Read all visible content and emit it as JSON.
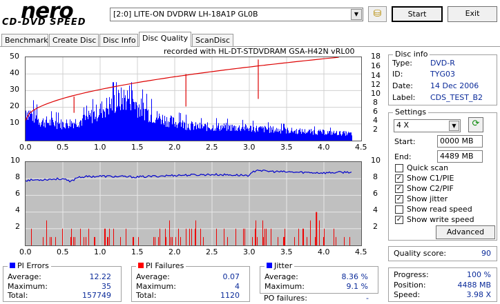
{
  "header": {
    "logo_text": "nero",
    "logo_sub": "CD-DVD SPEED",
    "drive": "[2:0]  LITE-ON DVDRW LH-18A1P GL0B",
    "start_label": "Start",
    "exit_label": "Exit"
  },
  "tabs": [
    {
      "label": "Benchmark"
    },
    {
      "label": "Create Disc"
    },
    {
      "label": "Disc Info"
    },
    {
      "label": "Disc Quality"
    },
    {
      "label": "ScanDisc"
    }
  ],
  "chart_top": {
    "recorded_with": "recorded with HL-DT-STDVDRAM GSA-H42N  vRL00",
    "left_ticks": [
      "50",
      "40",
      "30",
      "20",
      "10"
    ],
    "right_ticks": [
      "18",
      "16",
      "14",
      "12",
      "10",
      "8",
      "6",
      "4",
      "2"
    ],
    "x_ticks": [
      "0.0",
      "0.5",
      "1.0",
      "1.5",
      "2.0",
      "2.5",
      "3.0",
      "3.5",
      "4.0",
      "4.5"
    ]
  },
  "chart_bot": {
    "left_ticks": [
      "10",
      "8",
      "6",
      "4",
      "2"
    ],
    "right_ticks": [
      "10",
      "8",
      "6",
      "4",
      "2"
    ],
    "x_ticks": [
      "0.0",
      "0.5",
      "1.0",
      "1.5",
      "2.0",
      "2.5",
      "3.0",
      "3.5",
      "4.0",
      "4.5"
    ]
  },
  "chart_data": [
    {
      "type": "bar",
      "series": [
        {
          "name": "PI Errors"
        }
      ],
      "x_range": [
        0.0,
        4.5
      ],
      "ylim": [
        0,
        50
      ],
      "y2lim": [
        0,
        18
      ],
      "approx_envelope_x": [
        0.0,
        0.2,
        0.5,
        0.8,
        1.0,
        1.2,
        1.4,
        1.5,
        1.7,
        2.0,
        2.3,
        2.6,
        3.0,
        3.3,
        3.6,
        4.0,
        4.38
      ],
      "approx_envelope_y": [
        22,
        14,
        12,
        15,
        22,
        28,
        32,
        25,
        18,
        13,
        10,
        10,
        9,
        8,
        7,
        6,
        5
      ],
      "write_speed_line_x": [
        0.0,
        4.2
      ],
      "write_speed_line_y": [
        4.4,
        18
      ]
    },
    {
      "type": "line",
      "series": [
        {
          "name": "Jitter"
        },
        {
          "name": "PI Failures"
        }
      ],
      "x_range": [
        0.0,
        4.5
      ],
      "ylim": [
        0,
        10
      ],
      "jitter_x": [
        0.0,
        0.5,
        0.6,
        0.7,
        1.0,
        1.5,
        2.0,
        2.5,
        3.0,
        3.1,
        3.2,
        3.5,
        4.0,
        4.38
      ],
      "jitter_y": [
        7.8,
        8.0,
        7.6,
        8.2,
        8.3,
        8.2,
        8.4,
        8.5,
        8.4,
        9.1,
        8.9,
        8.8,
        8.7,
        8.8
      ]
    }
  ],
  "pi_errors": {
    "title": "PI Errors",
    "color": "#0000ff",
    "average_label": "Average:",
    "average": "12.22",
    "maximum_label": "Maximum:",
    "maximum": "35",
    "total_label": "Total:",
    "total": "157749"
  },
  "pi_failures": {
    "title": "PI Failures",
    "color": "#ff0000",
    "average_label": "Average:",
    "average": "0.07",
    "maximum_label": "Maximum:",
    "maximum": "4",
    "total_label": "Total:",
    "total": "1120"
  },
  "jitter": {
    "title": "Jitter",
    "color": "#0000ff",
    "average_label": "Average:",
    "average": "8.36 %",
    "maximum_label": "Maximum:",
    "maximum": "9.1 %",
    "po_label": "PO failures:",
    "po": "-"
  },
  "disc_info": {
    "title": "Disc info",
    "type_label": "Type:",
    "type": "DVD-R",
    "id_label": "ID:",
    "id": "TYG03",
    "date_label": "Date:",
    "date": "14 Dec 2006",
    "label_label": "Label:",
    "label": "CDS_TEST_B2"
  },
  "settings": {
    "title": "Settings",
    "speed": "4 X",
    "start_label": "Start:",
    "start": "0000 MB",
    "end_label": "End:",
    "end": "4489 MB",
    "quick_scan": "Quick scan",
    "show_c1": "Show C1/PIE",
    "show_c2": "Show C2/PIF",
    "show_jitter": "Show jitter",
    "show_read": "Show read speed",
    "show_write": "Show write speed",
    "advanced": "Advanced"
  },
  "quality": {
    "label": "Quality score:",
    "value": "90"
  },
  "progress": {
    "progress_label": "Progress:",
    "progress": "100 %",
    "position_label": "Position:",
    "position": "4488 MB",
    "speed_label": "Speed:",
    "speed": "3.98 X"
  }
}
